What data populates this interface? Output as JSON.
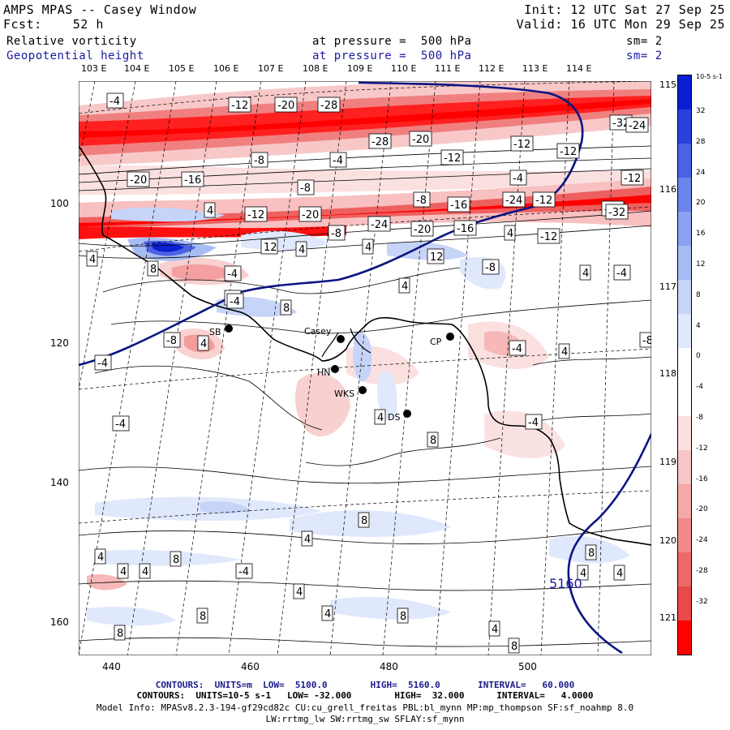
{
  "header": {
    "title": "AMPS MPAS -- Casey Window",
    "forecast": "Fcst:    52 h",
    "init": "Init: 12 UTC Sat 27 Sep 25",
    "valid": "Valid: 16 UTC Mon 29 Sep 25",
    "field1": "Relative vorticity",
    "field1_pressure": "at pressure =  500 hPa",
    "field1_sm": "sm= 2",
    "field2": "Geopotential height",
    "field2_pressure": "at pressure =  500 hPa",
    "field2_sm": "sm= 2"
  },
  "map": {
    "top_longitude_labels": [
      "103 E",
      "104 E",
      "105 E",
      "106 E",
      "107 E",
      "108 E",
      "109 E",
      "110 E",
      "111 E",
      "112 E",
      "113 E",
      "114 E"
    ],
    "right_longitude_labels": [
      "115 E",
      "116 E",
      "117 E",
      "118 E",
      "119 E",
      "120 E",
      "121 E"
    ],
    "left_axis_ticks": [
      "100",
      "120",
      "140",
      "160"
    ],
    "bottom_axis_ticks": [
      "440",
      "460",
      "480",
      "500"
    ],
    "stations": [
      {
        "name": "Casey"
      },
      {
        "name": "SB"
      },
      {
        "name": "CP"
      },
      {
        "name": "HN"
      },
      {
        "name": "WKS"
      },
      {
        "name": "DS"
      }
    ],
    "contour_labels": [
      "-4",
      "-12",
      "-20",
      "-28",
      "-32",
      "-24",
      "-28",
      "-20",
      "-12",
      "-12",
      "-8",
      "-4",
      "-12",
      "-4",
      "-20",
      "-16",
      "-8",
      "-12",
      "-8",
      "-16",
      "-24",
      "-12",
      "-32",
      "4",
      "-12",
      "-20",
      "-8",
      "4",
      "-24",
      "-20",
      "-16",
      "4",
      "-12",
      "-32",
      "12",
      "4",
      "4",
      "12",
      "8",
      "-4",
      "-8",
      "4",
      "-8",
      "4",
      "-4",
      "8",
      "-4",
      "-8",
      "4",
      "-8",
      "-4",
      "4",
      "-4",
      "4",
      "8",
      "-4",
      "-4",
      "8",
      "8",
      "4",
      "4",
      "4",
      "4",
      "-4",
      "4",
      "8",
      "4",
      "4",
      "4",
      "8",
      "8",
      "8",
      "4",
      "8"
    ],
    "height_label": "5160",
    "colors": {
      "negative": "#ff0000",
      "positive": "#0a1ed2",
      "coast": "#000000",
      "height": "#0a1482"
    }
  },
  "colorbar": {
    "unit": "10-5 s-1",
    "labels": [
      "32",
      "28",
      "24",
      "20",
      "16",
      "12",
      "8",
      "4",
      "0",
      "-4",
      "-8",
      "-12",
      "-16",
      "-20",
      "-24",
      "-28",
      "-32"
    ],
    "colors": [
      "#0a1ed2",
      "#2a40dc",
      "#4a62e4",
      "#6a84ea",
      "#8aa2f0",
      "#a8bcf4",
      "#c6d4f8",
      "#e0e8fc",
      "#ffffff",
      "#ffffff",
      "#fce0e0",
      "#f8c6c6",
      "#f4a8a8",
      "#f08a8a",
      "#ec6a6a",
      "#e84a4a",
      "#ff0000"
    ]
  },
  "footer": {
    "line1": "CONTOURS:  UNITS=m  LOW=  5100.0        HIGH=  5160.0       INTERVAL=   60.000",
    "line2": "CONTOURS:  UNITS=10-5 s-1   LOW= -32.000        HIGH=  32.000      INTERVAL=   4.0000",
    "line3": "Model Info: MPASv8.2.3-194-gf29cd82c CU:cu_grell_freitas PBL:bl_mynn MP:mp_thompson SF:sf_noahmp 8.0",
    "line4": "LW:rrtmg_lw SW:rrtmg_sw SFLAY:sf_mynn"
  }
}
